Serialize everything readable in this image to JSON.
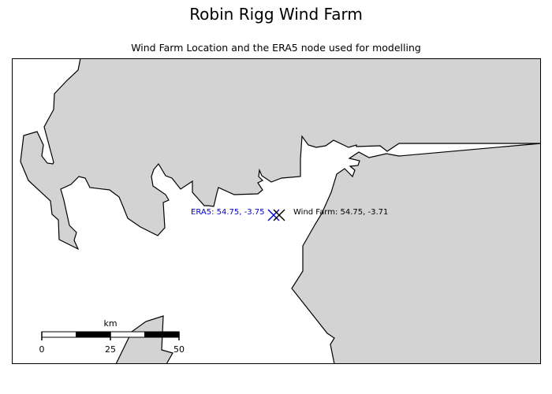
{
  "title": "Robin Rigg Wind Farm",
  "subtitle": "Wind Farm Location and the ERA5 node used for modelling",
  "colors": {
    "land": "#d3d3d3",
    "sea": "#ffffff",
    "coastline": "#000000",
    "era5_marker": "#0000cc",
    "wind_farm_marker": "#000000"
  },
  "markers": [
    {
      "name": "era5-node",
      "label": "ERA5: 54.75, -3.75",
      "symbol": "x",
      "color": "#0000cc"
    },
    {
      "name": "wind-farm",
      "label": "Wind Farm: 54.75, -3.71",
      "symbol": "x",
      "color": "#000000"
    }
  ],
  "scale_bar": {
    "unit_label": "km",
    "ticks": [
      "0",
      "25",
      "50"
    ]
  }
}
